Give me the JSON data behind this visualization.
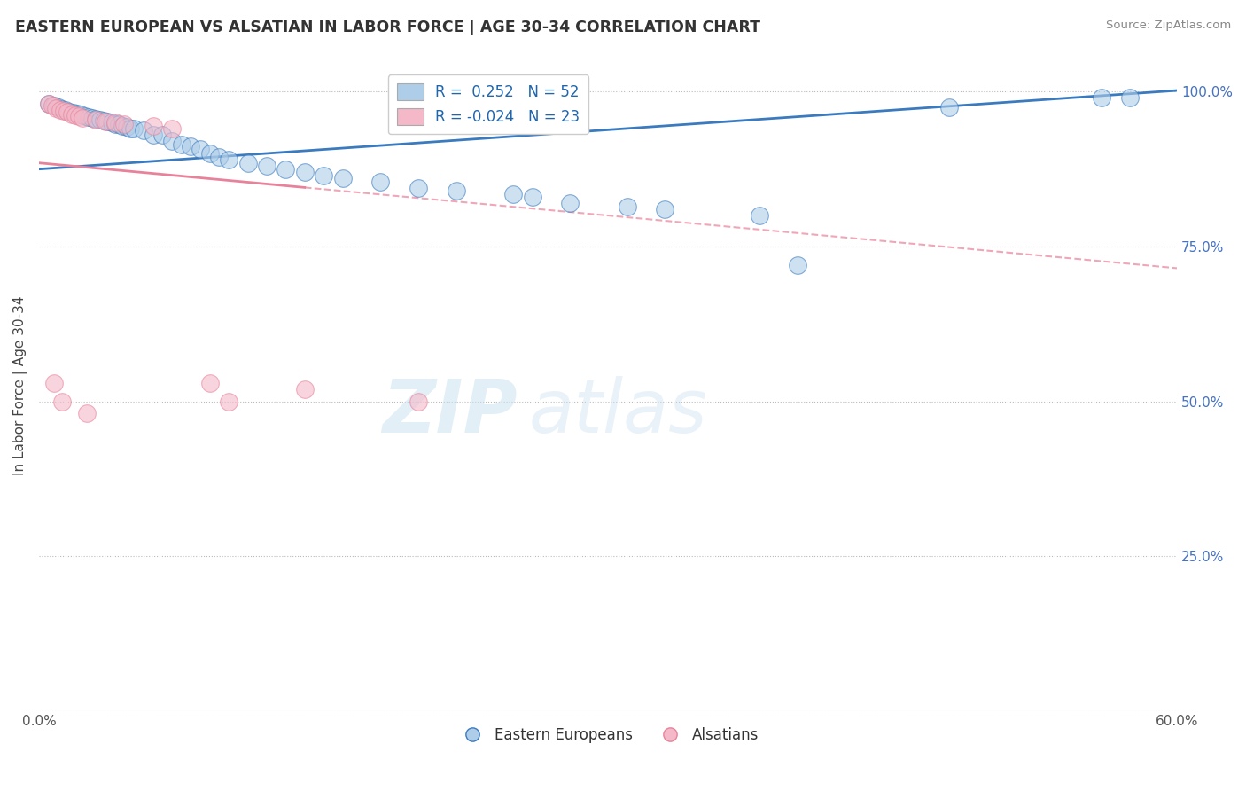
{
  "title": "EASTERN EUROPEAN VS ALSATIAN IN LABOR FORCE | AGE 30-34 CORRELATION CHART",
  "source": "Source: ZipAtlas.com",
  "ylabel": "In Labor Force | Age 30-34",
  "xlim": [
    0.0,
    0.6
  ],
  "ylim": [
    0.0,
    1.05
  ],
  "ytick_labels": [
    "",
    "25.0%",
    "50.0%",
    "75.0%",
    "100.0%"
  ],
  "ytick_values": [
    0.0,
    0.25,
    0.5,
    0.75,
    1.0
  ],
  "xtick_labels": [
    "0.0%",
    "",
    "",
    "",
    "",
    "",
    "60.0%"
  ],
  "xtick_values": [
    0.0,
    0.1,
    0.2,
    0.3,
    0.4,
    0.5,
    0.6
  ],
  "blue_R": 0.252,
  "blue_N": 52,
  "pink_R": -0.024,
  "pink_N": 23,
  "blue_color": "#aecde8",
  "pink_color": "#f4b8c8",
  "blue_line_color": "#3a7abf",
  "pink_line_color": "#e8829a",
  "background_color": "#ffffff",
  "watermark_zip": "ZIP",
  "watermark_atlas": "atlas",
  "blue_points_x": [
    0.005,
    0.008,
    0.01,
    0.012,
    0.014,
    0.016,
    0.018,
    0.02,
    0.022,
    0.024,
    0.026,
    0.028,
    0.03,
    0.032,
    0.034,
    0.036,
    0.038,
    0.04,
    0.042,
    0.044,
    0.046,
    0.048,
    0.05,
    0.055,
    0.06,
    0.065,
    0.07,
    0.075,
    0.08,
    0.085,
    0.09,
    0.095,
    0.1,
    0.11,
    0.12,
    0.13,
    0.14,
    0.15,
    0.16,
    0.18,
    0.2,
    0.22,
    0.25,
    0.26,
    0.28,
    0.31,
    0.33,
    0.38,
    0.4,
    0.48,
    0.56,
    0.575
  ],
  "blue_points_y": [
    0.98,
    0.978,
    0.975,
    0.972,
    0.97,
    0.968,
    0.966,
    0.965,
    0.963,
    0.961,
    0.959,
    0.958,
    0.956,
    0.955,
    0.953,
    0.952,
    0.95,
    0.948,
    0.947,
    0.945,
    0.943,
    0.941,
    0.94,
    0.938,
    0.93,
    0.93,
    0.92,
    0.915,
    0.912,
    0.908,
    0.9,
    0.895,
    0.89,
    0.885,
    0.88,
    0.875,
    0.87,
    0.865,
    0.86,
    0.855,
    0.845,
    0.84,
    0.835,
    0.83,
    0.82,
    0.815,
    0.81,
    0.8,
    0.72,
    0.975,
    0.99,
    0.99
  ],
  "pink_points_x": [
    0.005,
    0.007,
    0.009,
    0.011,
    0.013,
    0.015,
    0.017,
    0.019,
    0.021,
    0.023,
    0.03,
    0.035,
    0.04,
    0.045,
    0.06,
    0.07,
    0.09,
    0.1,
    0.14,
    0.2,
    0.008,
    0.012,
    0.025
  ],
  "pink_points_y": [
    0.98,
    0.977,
    0.974,
    0.971,
    0.969,
    0.967,
    0.964,
    0.962,
    0.96,
    0.957,
    0.955,
    0.952,
    0.95,
    0.948,
    0.945,
    0.94,
    0.53,
    0.5,
    0.52,
    0.5,
    0.53,
    0.5,
    0.48
  ]
}
